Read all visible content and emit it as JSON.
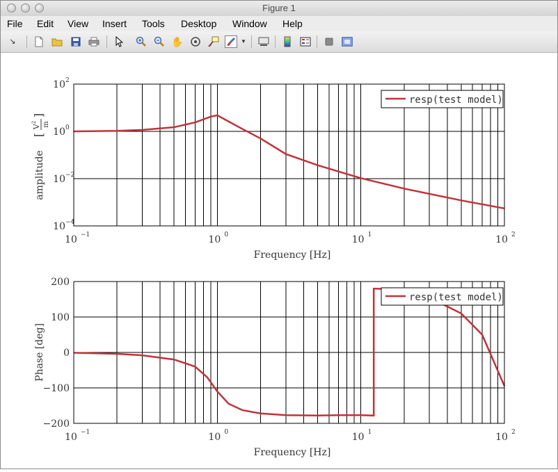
{
  "window": {
    "title": "Figure 1"
  },
  "menu": [
    "File",
    "Edit",
    "View",
    "Insert",
    "Tools",
    "Desktop",
    "Window",
    "Help"
  ],
  "toolbar": {
    "icons": [
      "arrow-icon",
      "new-figure-icon",
      "open-file-icon",
      "save-icon",
      "print-icon",
      "pointer-icon",
      "zoom-in-icon",
      "zoom-out-icon",
      "pan-icon",
      "rotate-3d-icon",
      "data-cursor-icon",
      "brush-icon",
      "dropdown-icon",
      "link-plot-icon",
      "colorbar-icon",
      "legend-icon",
      "hide-plot-tools-icon",
      "show-plot-tools-icon"
    ]
  },
  "line_color": "#c1323a",
  "chart_data": [
    {
      "type": "line",
      "xscale": "log",
      "yscale": "log",
      "xlim": [
        0.1,
        100
      ],
      "ylim": [
        0.0001,
        100
      ],
      "x_ticks": [
        "10",
        "10",
        "10",
        "10"
      ],
      "x_tick_exps": [
        "−1",
        "0",
        "1",
        "2"
      ],
      "y_ticks": [
        "10",
        "10",
        "10",
        "10"
      ],
      "y_tick_exps": [
        "−4",
        "−2",
        "0",
        "2"
      ],
      "xlabel_main": "Frequency",
      "xlabel_unit": "Hz",
      "ylabel_main": "amplitude",
      "ylabel_unit_num": "V",
      "ylabel_unit_exp": "2",
      "ylabel_unit_den": "m",
      "grid": true,
      "legend": "top-right",
      "series": [
        {
          "name": "resp(test model)",
          "x": [
            0.1,
            0.2,
            0.3,
            0.5,
            0.7,
            0.9,
            1.0,
            1.2,
            1.5,
            2,
            3,
            5,
            10,
            20,
            50,
            100
          ],
          "y": [
            1.0,
            1.05,
            1.15,
            1.5,
            2.4,
            4.2,
            4.8,
            2.6,
            1.25,
            0.5,
            0.11,
            0.037,
            0.0105,
            0.0038,
            0.0012,
            0.00055
          ]
        }
      ]
    },
    {
      "type": "line",
      "xscale": "log",
      "yscale": "linear",
      "xlim": [
        0.1,
        100
      ],
      "ylim": [
        -200,
        200
      ],
      "x_ticks": [
        "10",
        "10",
        "10",
        "10"
      ],
      "x_tick_exps": [
        "−1",
        "0",
        "1",
        "2"
      ],
      "y_ticks": [
        "−200",
        "−100",
        "0",
        "100",
        "200"
      ],
      "xlabel_main": "Frequency",
      "xlabel_unit": "Hz",
      "ylabel": "Phase [deg]",
      "grid": true,
      "legend": "top-right",
      "series": [
        {
          "name": "resp(test model)",
          "x": [
            0.1,
            0.2,
            0.3,
            0.5,
            0.7,
            0.85,
            1.0,
            1.2,
            1.5,
            2,
            3,
            5,
            7,
            10,
            12.3,
            12.3,
            13,
            20,
            30,
            50,
            70,
            100
          ],
          "y": [
            -1,
            -4,
            -8,
            -20,
            -40,
            -70,
            -110,
            -145,
            -163,
            -172,
            -177,
            -178,
            -177,
            -177,
            -178,
            180,
            180,
            175,
            155,
            110,
            50,
            -95
          ]
        }
      ]
    }
  ]
}
